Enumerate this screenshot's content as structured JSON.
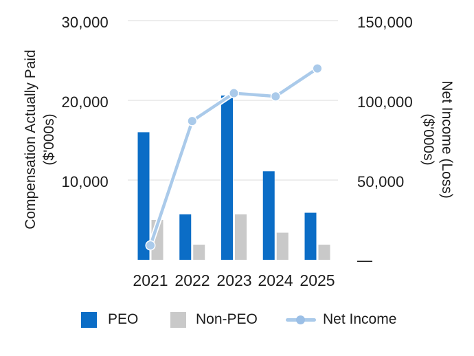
{
  "axes": {
    "left": {
      "title_line1": "Compensation Actually Paid",
      "title_line2": "($'000s)",
      "ticks": [
        "30,000",
        "20,000",
        "10,000"
      ]
    },
    "right": {
      "title_line1": "Net Income (Loss)",
      "title_line2": "($'000s)",
      "ticks": [
        "150,000",
        "100,000",
        "50,000"
      ],
      "zero_label": "—"
    },
    "x": {
      "labels": [
        "2021",
        "2022",
        "2023",
        "2024",
        "2025"
      ]
    }
  },
  "legend": {
    "items": [
      {
        "label": "PEO",
        "swatch": "bar",
        "color": "#0b6dc6"
      },
      {
        "label": "Non-PEO",
        "swatch": "bar",
        "color": "#c9c9c9"
      },
      {
        "label": "Net Income",
        "swatch": "line",
        "color": "#aacaea",
        "dot_color": "#9bbfe6"
      }
    ]
  },
  "colors": {
    "peo_bar": "#0b6dc6",
    "non_peo_bar": "#c9c9c9",
    "net_income_line": "#aacaea",
    "gridline": "#e2e2e2",
    "text": "#1c1c1c",
    "background": "#ffffff"
  },
  "chart_data": {
    "type": "combo: bar + line, dual axis",
    "categories": [
      "2021",
      "2022",
      "2023",
      "2024",
      "2025"
    ],
    "series": [
      {
        "name": "PEO",
        "type": "bar",
        "axis": "left",
        "color": "#0b6dc6",
        "values": [
          16000,
          5700,
          20600,
          11100,
          5900
        ]
      },
      {
        "name": "Non-PEO",
        "type": "bar",
        "axis": "left",
        "color": "#c9c9c9",
        "values": [
          5000,
          1900,
          5700,
          3400,
          1900
        ]
      },
      {
        "name": "Net Income",
        "type": "line",
        "axis": "right",
        "color": "#aacaea",
        "values": [
          9000,
          87000,
          104500,
          102500,
          120000
        ]
      }
    ],
    "left_axis_label": "Compensation Actually Paid ($'000s)",
    "right_axis_label": "Net Income (Loss) ($'000s)",
    "left_ylim": [
      0,
      30000
    ],
    "right_ylim": [
      0,
      150000
    ],
    "left_tick_values": [
      30000,
      20000,
      10000
    ],
    "right_tick_values": [
      150000,
      100000,
      50000
    ],
    "grid": "horizontal only",
    "legend_position": "bottom"
  }
}
